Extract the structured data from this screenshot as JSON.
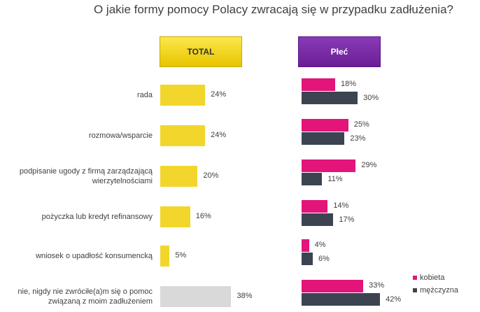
{
  "title": "O jakie formy pomocy Polacy zwracają się w przypadku zadłużenia?",
  "headers": {
    "total": "TOTAL",
    "gender": "Płeć"
  },
  "colors": {
    "total": "#f2d62c",
    "total_last": "#d9d9d9",
    "kobieta": "#e3147a",
    "mezczyzna": "#3b4450"
  },
  "legend": [
    "kobieta",
    "mężczyzna"
  ],
  "chart_data": {
    "type": "bar",
    "categories": [
      "rada",
      "rozmowa/wsparcie",
      "podpisanie ugody z firmą zarządzającą\nwierzytelnościami",
      "pożyczka lub kredyt refinansowy",
      "wniosek o upadłość konsumencką",
      "nie, nigdy nie zwróciłe(a)m się o pomoc\nzwiązaną z moim zadłużeniem"
    ],
    "series": [
      {
        "name": "TOTAL",
        "values": [
          24,
          24,
          20,
          16,
          5,
          38
        ]
      },
      {
        "name": "kobieta",
        "values": [
          18,
          25,
          29,
          14,
          4,
          33
        ]
      },
      {
        "name": "mężczyzna",
        "values": [
          30,
          23,
          11,
          17,
          6,
          42
        ]
      }
    ],
    "labels": {
      "total": [
        "24%",
        "24%",
        "20%",
        "16%",
        "5%",
        "38%"
      ],
      "kobieta": [
        "18%",
        "25%",
        "29%",
        "14%",
        "4%",
        "33%"
      ],
      "mezczyzna": [
        "30%",
        "23%",
        "11%",
        "17%",
        "6%",
        "42%"
      ]
    }
  }
}
